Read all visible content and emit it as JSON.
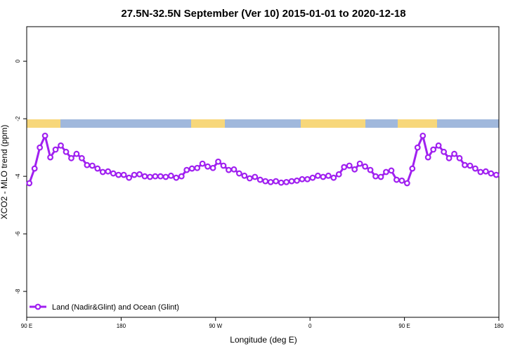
{
  "chart_data": {
    "type": "line",
    "title": "27.5N-32.5N September (Ver 10)   2015-01-01 to 2020-12-18",
    "x_label": "Longitude (deg E)",
    "y_label": "XCO2 - MLO trend (ppm)",
    "xlim": [
      90,
      540
    ],
    "ylim": [
      -8.9,
      1.2
    ],
    "xticks": [
      {
        "value": 90,
        "label": "90 E"
      },
      180,
      {
        "value": 270,
        "label": "90 W"
      },
      {
        "value": 360,
        "label": "0"
      },
      {
        "value": 450,
        "label": "90 E"
      },
      {
        "value": 540,
        "label": "180"
      }
    ],
    "yticks": [
      0,
      -2,
      -4,
      -6,
      -8
    ],
    "x": [
      92.5,
      97.5,
      102.5,
      107.5,
      112.5,
      117.5,
      122.5,
      127.5,
      132.5,
      137.5,
      142.5,
      147.5,
      152.5,
      157.5,
      162.5,
      167.5,
      172.5,
      177.5,
      182.5,
      187.5,
      192.5,
      197.5,
      202.5,
      207.5,
      212.5,
      217.5,
      222.5,
      227.5,
      232.5,
      237.5,
      242.5,
      247.5,
      252.5,
      257.5,
      262.5,
      267.5,
      272.5,
      277.5,
      282.5,
      287.5,
      292.5,
      297.5,
      302.5,
      307.5,
      312.5,
      317.5,
      322.5,
      327.5,
      332.5,
      337.5,
      342.5,
      347.5,
      352.5,
      357.5,
      362.5,
      367.5,
      372.5,
      377.5,
      382.5,
      387.5,
      392.5,
      397.5,
      402.5,
      407.5,
      412.5,
      417.5,
      422.5,
      427.5,
      432.5,
      437.5,
      442.5,
      447.5,
      452.5,
      457.5,
      462.5,
      467.5,
      472.5,
      477.5,
      482.5,
      487.5,
      492.5,
      497.5,
      502.5,
      507.5,
      512.5,
      517.5,
      522.5,
      527.5,
      532.5,
      537.5
    ],
    "series": [
      {
        "name": "Land (Nadir&Glint) and Ocean (Glint)",
        "color": "#a020f0",
        "values": [
          -4.24,
          -3.73,
          -3.0,
          -2.59,
          -3.34,
          -3.07,
          -2.93,
          -3.15,
          -3.37,
          -3.22,
          -3.37,
          -3.61,
          -3.63,
          -3.73,
          -3.85,
          -3.83,
          -3.9,
          -3.95,
          -3.95,
          -4.05,
          -3.95,
          -3.93,
          -4.0,
          -4.02,
          -4.0,
          -4.0,
          -4.02,
          -3.98,
          -4.05,
          -4.0,
          -3.78,
          -3.73,
          -3.71,
          -3.56,
          -3.66,
          -3.71,
          -3.49,
          -3.63,
          -3.78,
          -3.76,
          -3.9,
          -3.98,
          -4.07,
          -4.02,
          -4.12,
          -4.17,
          -4.2,
          -4.17,
          -4.22,
          -4.2,
          -4.17,
          -4.15,
          -4.1,
          -4.1,
          -4.05,
          -3.98,
          -4.02,
          -3.98,
          -4.05,
          -3.93,
          -3.68,
          -3.63,
          -3.76,
          -3.56,
          -3.66,
          -3.78,
          -4.0,
          -4.02,
          -3.85,
          -3.8,
          -4.12,
          -4.15,
          -4.24,
          -3.73,
          -3.0,
          -2.59,
          -3.34,
          -3.07,
          -2.93,
          -3.15,
          -3.37,
          -3.22,
          -3.37,
          -3.61,
          -3.63,
          -3.73,
          -3.85,
          -3.83,
          -3.9,
          -3.95
        ]
      }
    ],
    "legend": "bottom-left"
  }
}
